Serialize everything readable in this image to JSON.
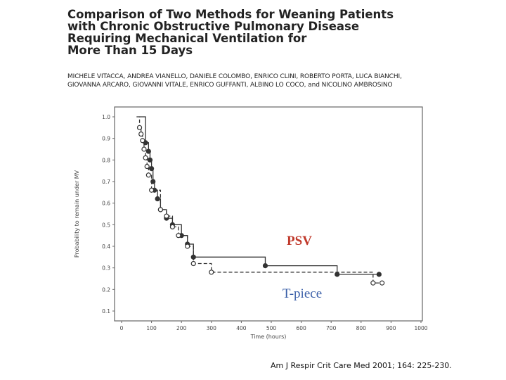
{
  "paper": {
    "title_lines": [
      "Comparison of Two Methods for Weaning Patients",
      "with Chronic Obstructive Pulmonary Disease",
      "Requiring Mechanical Ventilation for",
      "More Than 15 Days"
    ],
    "author_lines": [
      "MICHELE VITACCA, ANDREA VIANELLO, DANIELE COLOMBO, ENRICO CLINI, ROBERTO PORTA, LUCA BIANCHI,",
      "GIOVANNA ARCARO, GIOVANNI VITALE, ENRICO GUFFANTI, ALBINO LO COCO, and NICOLINO AMBROSINO"
    ],
    "citation": "Am J Respir Crit Care Med 2001; 164: 225-230."
  },
  "colors": {
    "psv_label": "#c0392b",
    "tpiece_label": "#3a5fa8",
    "series_stroke": "#333333",
    "frame": "#666666"
  },
  "chart_data": {
    "type": "line",
    "title": "",
    "xlabel": "Time (hours)",
    "ylabel": "Probability to remain under MV",
    "xlim": [
      0,
      1000
    ],
    "ylim": [
      0.1,
      1.0
    ],
    "x_ticks": [
      0,
      100,
      200,
      300,
      400,
      500,
      600,
      700,
      800,
      900,
      1000
    ],
    "x_tick_labels": [
      "0",
      "100",
      "200",
      "300",
      "400",
      "500",
      "600",
      "700",
      "800",
      "900",
      "1000"
    ],
    "y_ticks": [
      0.1,
      0.2,
      0.3,
      0.4,
      0.5,
      0.6,
      0.7,
      0.8,
      0.9,
      1.0
    ],
    "y_tick_labels": [
      "0.1",
      "0.2",
      "0.3",
      "0.4",
      "0.5",
      "0.6",
      "0.7",
      "0.8",
      "0.9",
      "1.0"
    ],
    "series": [
      {
        "name": "PSV",
        "label": "PSV",
        "marker": "filled",
        "line": "solid",
        "start_x": 60,
        "start_y": 1.0,
        "x": [
          80,
          90,
          95,
          100,
          105,
          110,
          120,
          130,
          150,
          170,
          200,
          220,
          240,
          480,
          720,
          860
        ],
        "y": [
          0.88,
          0.84,
          0.8,
          0.76,
          0.7,
          0.66,
          0.62,
          0.57,
          0.53,
          0.5,
          0.45,
          0.41,
          0.35,
          0.31,
          0.27,
          0.27
        ]
      },
      {
        "name": "T-piece",
        "label": "T-piece",
        "marker": "open",
        "line": "dashed",
        "start_x": 50,
        "start_y": 1.0,
        "x": [
          60,
          65,
          70,
          75,
          80,
          85,
          90,
          100,
          130,
          150,
          170,
          190,
          220,
          240,
          300,
          840,
          870
        ],
        "y": [
          0.95,
          0.92,
          0.89,
          0.85,
          0.81,
          0.77,
          0.73,
          0.66,
          0.57,
          0.54,
          0.49,
          0.45,
          0.4,
          0.32,
          0.28,
          0.23,
          0.23
        ]
      }
    ]
  }
}
